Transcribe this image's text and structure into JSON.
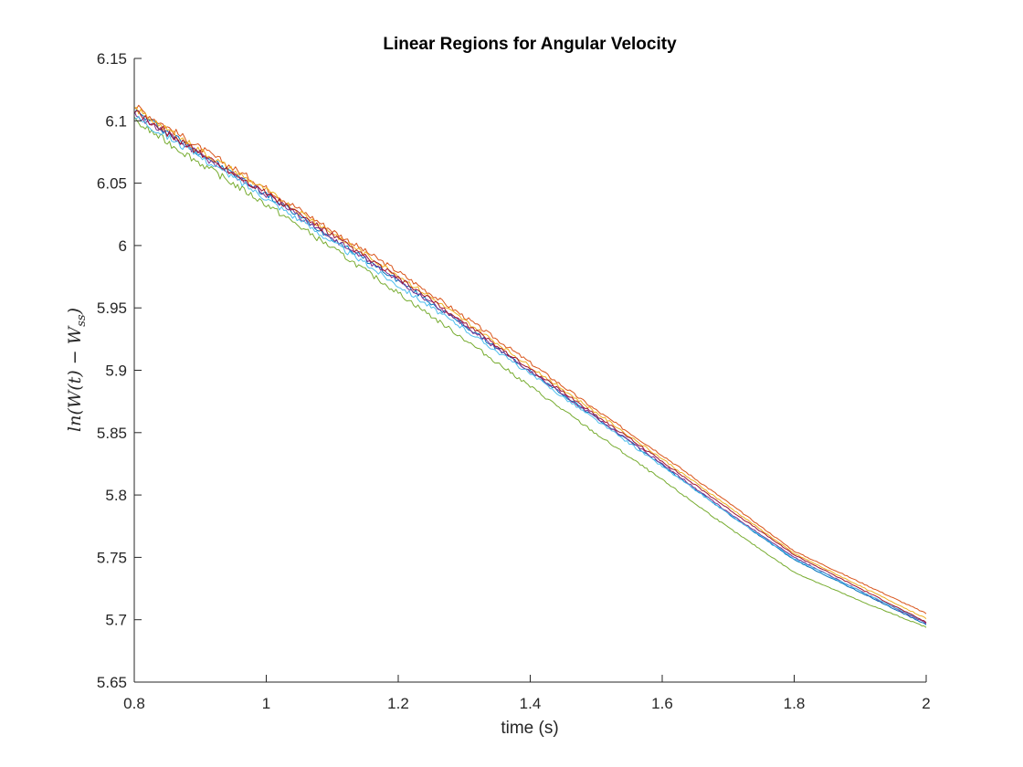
{
  "chart_data": {
    "type": "line",
    "title": "Linear Regions for Angular Velocity",
    "xlabel": "time (s)",
    "ylabel": "ln(W(t) − W_ss)",
    "ylabel_parts": {
      "main": "ln(W(t) − W",
      "sub": "ss",
      "close": ")"
    },
    "xlim": [
      0.8,
      2
    ],
    "ylim": [
      5.65,
      6.15
    ],
    "x_ticks": [
      "0.8",
      "1",
      "1.2",
      "1.4",
      "1.6",
      "1.8",
      "2"
    ],
    "y_ticks": [
      "5.65",
      "5.7",
      "5.75",
      "5.8",
      "5.85",
      "5.9",
      "5.95",
      "6",
      "6.05",
      "6.1",
      "6.15"
    ],
    "grid": false,
    "legend": "none",
    "x_sample": [
      0.8,
      0.9,
      1.0,
      1.1,
      1.2,
      1.3,
      1.4,
      1.5,
      1.6,
      1.7,
      1.8,
      1.9,
      2.0
    ],
    "series": [
      {
        "color": "#0072BD",
        "values": [
          6.108,
          6.074,
          6.041,
          6.006,
          5.972,
          5.936,
          5.899,
          5.862,
          5.824,
          5.785,
          5.748,
          5.722,
          5.696
        ]
      },
      {
        "color": "#D95319",
        "values": [
          6.112,
          6.078,
          6.046,
          6.012,
          5.979,
          5.943,
          5.906,
          5.868,
          5.832,
          5.794,
          5.755,
          5.73,
          5.705
        ]
      },
      {
        "color": "#EDB120",
        "values": [
          6.11,
          6.076,
          6.044,
          6.01,
          5.976,
          5.94,
          5.903,
          5.866,
          5.829,
          5.791,
          5.753,
          5.727,
          5.701
        ]
      },
      {
        "color": "#7E2F8E",
        "values": [
          6.106,
          6.073,
          6.041,
          6.006,
          5.972,
          5.936,
          5.899,
          5.862,
          5.825,
          5.786,
          5.75,
          5.723,
          5.697
        ]
      },
      {
        "color": "#77AC30",
        "values": [
          6.1,
          6.066,
          6.033,
          5.998,
          5.962,
          5.925,
          5.887,
          5.849,
          5.812,
          5.774,
          5.738,
          5.715,
          5.694
        ]
      },
      {
        "color": "#4DBEEE",
        "values": [
          6.104,
          6.071,
          6.038,
          6.003,
          5.968,
          5.933,
          5.897,
          5.86,
          5.823,
          5.785,
          5.749,
          5.723,
          5.698
        ]
      },
      {
        "color": "#A2142F",
        "values": [
          6.107,
          6.074,
          6.042,
          6.008,
          5.974,
          5.938,
          5.901,
          5.864,
          5.827,
          5.789,
          5.752,
          5.725,
          5.698
        ]
      }
    ]
  }
}
